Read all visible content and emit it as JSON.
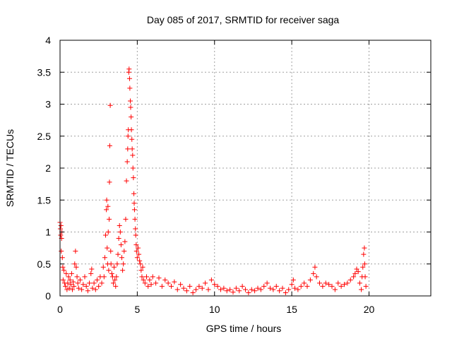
{
  "chart_data": {
    "type": "scatter",
    "title": "Day 085 of 2017, SRMTID for receiver saga",
    "xlabel": "GPS time / hours",
    "ylabel": "SRMTID / TECUs",
    "xlim": [
      0,
      24
    ],
    "ylim": [
      0,
      4
    ],
    "xticks": [
      0,
      5,
      10,
      15,
      20
    ],
    "yticks": [
      0,
      0.5,
      1,
      1.5,
      2,
      2.5,
      3,
      3.5,
      4
    ],
    "xtick_labels": [
      "0",
      "5",
      "10",
      "15",
      "20"
    ],
    "ytick_labels": [
      "0",
      "0.5",
      "1",
      "1.5",
      "2",
      "2.5",
      "3",
      "3.5",
      "4"
    ],
    "grid": true,
    "marker": "+",
    "color": "#ff0000",
    "series": [
      {
        "name": "SRMTID",
        "points": [
          [
            0.0,
            1.15
          ],
          [
            0.02,
            1.05
          ],
          [
            0.04,
            0.95
          ],
          [
            0.06,
            1.1
          ],
          [
            0.08,
            0.7
          ],
          [
            0.1,
            0.9
          ],
          [
            0.12,
            1.0
          ],
          [
            0.15,
            0.6
          ],
          [
            0.18,
            0.45
          ],
          [
            0.2,
            0.25
          ],
          [
            0.25,
            0.4
          ],
          [
            0.3,
            0.2
          ],
          [
            0.35,
            0.15
          ],
          [
            0.4,
            0.35
          ],
          [
            0.45,
            0.1
          ],
          [
            0.5,
            0.2
          ],
          [
            0.55,
            0.3
          ],
          [
            0.6,
            0.12
          ],
          [
            0.65,
            0.25
          ],
          [
            0.7,
            0.18
          ],
          [
            0.75,
            0.35
          ],
          [
            0.8,
            0.1
          ],
          [
            0.85,
            0.22
          ],
          [
            0.9,
            0.15
          ],
          [
            0.95,
            0.5
          ],
          [
            1.0,
            0.7
          ],
          [
            1.05,
            0.45
          ],
          [
            1.1,
            0.3
          ],
          [
            1.15,
            0.2
          ],
          [
            1.2,
            0.12
          ],
          [
            1.3,
            0.25
          ],
          [
            1.4,
            0.1
          ],
          [
            1.5,
            0.18
          ],
          [
            1.6,
            0.3
          ],
          [
            1.7,
            0.15
          ],
          [
            1.8,
            0.08
          ],
          [
            1.9,
            0.2
          ],
          [
            2.0,
            0.35
          ],
          [
            2.05,
            0.42
          ],
          [
            2.1,
            0.12
          ],
          [
            2.2,
            0.2
          ],
          [
            2.3,
            0.1
          ],
          [
            2.4,
            0.25
          ],
          [
            2.5,
            0.15
          ],
          [
            2.6,
            0.3
          ],
          [
            2.7,
            0.2
          ],
          [
            2.8,
            0.45
          ],
          [
            2.85,
            0.3
          ],
          [
            2.9,
            0.6
          ],
          [
            2.95,
            0.95
          ],
          [
            3.0,
            1.35
          ],
          [
            3.02,
            1.5
          ],
          [
            3.05,
            0.75
          ],
          [
            3.08,
            0.5
          ],
          [
            3.1,
            1.4
          ],
          [
            3.12,
            1.0
          ],
          [
            3.15,
            0.4
          ],
          [
            3.18,
            1.2
          ],
          [
            3.2,
            1.78
          ],
          [
            3.22,
            2.35
          ],
          [
            3.25,
            2.98
          ],
          [
            3.28,
            0.7
          ],
          [
            3.3,
            0.5
          ],
          [
            3.35,
            0.35
          ],
          [
            3.4,
            0.3
          ],
          [
            3.45,
            0.2
          ],
          [
            3.5,
            0.45
          ],
          [
            3.55,
            0.25
          ],
          [
            3.6,
            0.15
          ],
          [
            3.65,
            0.3
          ],
          [
            3.7,
            0.5
          ],
          [
            3.75,
            0.65
          ],
          [
            3.8,
            0.9
          ],
          [
            3.85,
            1.1
          ],
          [
            3.9,
            1.0
          ],
          [
            3.95,
            0.8
          ],
          [
            4.0,
            0.6
          ],
          [
            4.05,
            0.4
          ],
          [
            4.1,
            0.5
          ],
          [
            4.15,
            0.7
          ],
          [
            4.2,
            0.85
          ],
          [
            4.25,
            1.2
          ],
          [
            4.3,
            1.8
          ],
          [
            4.35,
            2.1
          ],
          [
            4.38,
            2.3
          ],
          [
            4.4,
            2.5
          ],
          [
            4.42,
            2.6
          ],
          [
            4.45,
            3.5
          ],
          [
            4.47,
            3.55
          ],
          [
            4.5,
            3.4
          ],
          [
            4.52,
            3.25
          ],
          [
            4.55,
            3.05
          ],
          [
            4.57,
            2.95
          ],
          [
            4.6,
            2.8
          ],
          [
            4.62,
            2.6
          ],
          [
            4.65,
            2.45
          ],
          [
            4.67,
            2.3
          ],
          [
            4.7,
            2.2
          ],
          [
            4.72,
            2.0
          ],
          [
            4.75,
            1.85
          ],
          [
            4.78,
            1.6
          ],
          [
            4.8,
            1.45
          ],
          [
            4.82,
            1.35
          ],
          [
            4.85,
            1.2
          ],
          [
            4.88,
            1.05
          ],
          [
            4.9,
            0.95
          ],
          [
            4.93,
            0.8
          ],
          [
            4.95,
            0.7
          ],
          [
            5.0,
            0.6
          ],
          [
            5.05,
            0.75
          ],
          [
            5.1,
            0.65
          ],
          [
            5.15,
            0.55
          ],
          [
            5.2,
            0.5
          ],
          [
            5.25,
            0.4
          ],
          [
            5.3,
            0.3
          ],
          [
            5.35,
            0.45
          ],
          [
            5.4,
            0.25
          ],
          [
            5.5,
            0.2
          ],
          [
            5.6,
            0.3
          ],
          [
            5.7,
            0.15
          ],
          [
            5.8,
            0.25
          ],
          [
            5.9,
            0.18
          ],
          [
            6.0,
            0.3
          ],
          [
            6.2,
            0.2
          ],
          [
            6.4,
            0.28
          ],
          [
            6.6,
            0.15
          ],
          [
            6.8,
            0.25
          ],
          [
            7.0,
            0.2
          ],
          [
            7.2,
            0.15
          ],
          [
            7.4,
            0.22
          ],
          [
            7.6,
            0.1
          ],
          [
            7.8,
            0.18
          ],
          [
            8.0,
            0.12
          ],
          [
            8.2,
            0.08
          ],
          [
            8.4,
            0.15
          ],
          [
            8.6,
            0.05
          ],
          [
            8.8,
            0.1
          ],
          [
            9.0,
            0.15
          ],
          [
            9.2,
            0.12
          ],
          [
            9.4,
            0.2
          ],
          [
            9.6,
            0.1
          ],
          [
            9.8,
            0.25
          ],
          [
            10.0,
            0.18
          ],
          [
            10.2,
            0.15
          ],
          [
            10.4,
            0.1
          ],
          [
            10.6,
            0.12
          ],
          [
            10.8,
            0.08
          ],
          [
            11.0,
            0.1
          ],
          [
            11.2,
            0.06
          ],
          [
            11.4,
            0.12
          ],
          [
            11.6,
            0.08
          ],
          [
            11.8,
            0.15
          ],
          [
            12.0,
            0.1
          ],
          [
            12.2,
            0.05
          ],
          [
            12.4,
            0.1
          ],
          [
            12.6,
            0.08
          ],
          [
            12.8,
            0.12
          ],
          [
            13.0,
            0.1
          ],
          [
            13.2,
            0.15
          ],
          [
            13.4,
            0.2
          ],
          [
            13.6,
            0.12
          ],
          [
            13.8,
            0.1
          ],
          [
            14.0,
            0.15
          ],
          [
            14.2,
            0.08
          ],
          [
            14.4,
            0.12
          ],
          [
            14.6,
            0.05
          ],
          [
            14.8,
            0.1
          ],
          [
            15.0,
            0.18
          ],
          [
            15.1,
            0.25
          ],
          [
            15.2,
            0.12
          ],
          [
            15.4,
            0.1
          ],
          [
            15.6,
            0.15
          ],
          [
            15.8,
            0.2
          ],
          [
            16.0,
            0.15
          ],
          [
            16.2,
            0.25
          ],
          [
            16.4,
            0.35
          ],
          [
            16.5,
            0.45
          ],
          [
            16.6,
            0.3
          ],
          [
            16.8,
            0.2
          ],
          [
            17.0,
            0.15
          ],
          [
            17.2,
            0.2
          ],
          [
            17.4,
            0.18
          ],
          [
            17.6,
            0.15
          ],
          [
            17.8,
            0.1
          ],
          [
            18.0,
            0.2
          ],
          [
            18.2,
            0.15
          ],
          [
            18.4,
            0.18
          ],
          [
            18.6,
            0.2
          ],
          [
            18.8,
            0.25
          ],
          [
            19.0,
            0.3
          ],
          [
            19.1,
            0.35
          ],
          [
            19.2,
            0.42
          ],
          [
            19.3,
            0.38
          ],
          [
            19.4,
            0.2
          ],
          [
            19.5,
            0.1
          ],
          [
            19.55,
            0.3
          ],
          [
            19.6,
            0.45
          ],
          [
            19.65,
            0.65
          ],
          [
            19.7,
            0.75
          ],
          [
            19.72,
            0.5
          ],
          [
            19.75,
            0.3
          ],
          [
            19.8,
            0.15
          ]
        ]
      }
    ]
  }
}
